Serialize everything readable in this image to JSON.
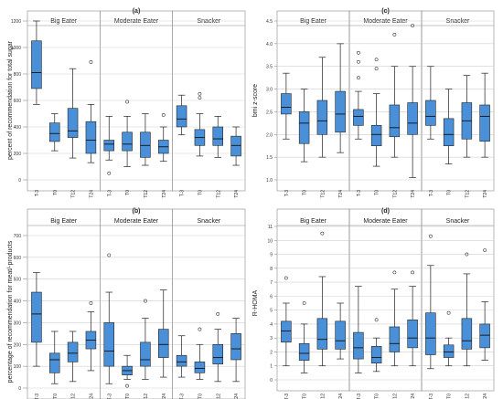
{
  "chart_data": [
    {
      "letter": "(a)",
      "type": "boxplot",
      "ylabel": "percent of recommendation for total sugar",
      "ylim": [
        0,
        1200
      ],
      "yticks": [
        0,
        200,
        400,
        600,
        800,
        1000,
        1200
      ],
      "grid": true,
      "categories": [
        "T-3",
        "T0",
        "T12",
        "T24"
      ],
      "box_color": "#4a90d9",
      "groups": [
        {
          "name": "Big Eater",
          "boxes": [
            {
              "min": 570,
              "q1": 690,
              "median": 810,
              "q3": 1050,
              "max": 1200,
              "outliers": []
            },
            {
              "min": 220,
              "q1": 290,
              "median": 350,
              "q3": 430,
              "max": 500,
              "outliers": []
            },
            {
              "min": 165,
              "q1": 320,
              "median": 370,
              "q3": 540,
              "max": 840,
              "outliers": []
            },
            {
              "min": 130,
              "q1": 200,
              "median": 300,
              "q3": 440,
              "max": 570,
              "outliers": [
                890
              ]
            }
          ]
        },
        {
          "name": "Moderate Eater",
          "boxes": [
            {
              "min": 150,
              "q1": 220,
              "median": 270,
              "q3": 300,
              "max": 480,
              "outliers": [
                50
              ]
            },
            {
              "min": 100,
              "q1": 220,
              "median": 270,
              "q3": 360,
              "max": 480,
              "outliers": [
                590
              ]
            },
            {
              "min": 110,
              "q1": 170,
              "median": 260,
              "q3": 360,
              "max": 500,
              "outliers": []
            },
            {
              "min": 140,
              "q1": 200,
              "median": 250,
              "q3": 300,
              "max": 400,
              "outliers": [
                490
              ]
            }
          ]
        },
        {
          "name": "Snacker",
          "boxes": [
            {
              "min": 340,
              "q1": 400,
              "median": 460,
              "q3": 560,
              "max": 640,
              "outliers": []
            },
            {
              "min": 180,
              "q1": 260,
              "median": 320,
              "q3": 380,
              "max": 500,
              "outliers": [
                620,
                650
              ]
            },
            {
              "min": 170,
              "q1": 260,
              "median": 310,
              "q3": 400,
              "max": 480,
              "outliers": []
            },
            {
              "min": 110,
              "q1": 180,
              "median": 260,
              "q3": 330,
              "max": 400,
              "outliers": []
            }
          ]
        }
      ]
    },
    {
      "letter": "(c)",
      "type": "boxplot",
      "ylabel": "bmi z-score",
      "ylim": [
        1.0,
        4.5
      ],
      "yticks": [
        1.0,
        1.5,
        2.0,
        2.5,
        3.0,
        3.5,
        4.0,
        4.5
      ],
      "grid": true,
      "categories": [
        "T-3",
        "T0",
        "T12",
        "T24"
      ],
      "box_color": "#4a90d9",
      "groups": [
        {
          "name": "Big Eater",
          "boxes": [
            {
              "min": 1.9,
              "q1": 2.45,
              "median": 2.6,
              "q3": 2.9,
              "max": 3.35,
              "outliers": []
            },
            {
              "min": 1.4,
              "q1": 1.8,
              "median": 2.25,
              "q3": 2.5,
              "max": 3.0,
              "outliers": []
            },
            {
              "min": 1.5,
              "q1": 2.0,
              "median": 2.3,
              "q3": 2.75,
              "max": 3.7,
              "outliers": []
            },
            {
              "min": 1.6,
              "q1": 2.05,
              "median": 2.45,
              "q3": 2.95,
              "max": 4.0,
              "outliers": []
            }
          ]
        },
        {
          "name": "Moderate Eater",
          "boxes": [
            {
              "min": 1.9,
              "q1": 2.2,
              "median": 2.4,
              "q3": 2.55,
              "max": 2.95,
              "outliers": [
                3.25,
                3.6,
                3.8
              ]
            },
            {
              "min": 1.3,
              "q1": 1.75,
              "median": 2.0,
              "q3": 2.2,
              "max": 2.9,
              "outliers": [
                3.45,
                3.65
              ]
            },
            {
              "min": 1.5,
              "q1": 1.95,
              "median": 2.15,
              "q3": 2.65,
              "max": 3.5,
              "outliers": [
                4.2
              ]
            },
            {
              "min": 1.05,
              "q1": 2.0,
              "median": 2.25,
              "q3": 2.7,
              "max": 3.5,
              "outliers": [
                4.4
              ]
            }
          ]
        },
        {
          "name": "Snacker",
          "boxes": [
            {
              "min": 1.9,
              "q1": 2.2,
              "median": 2.4,
              "q3": 2.75,
              "max": 3.5,
              "outliers": []
            },
            {
              "min": 1.35,
              "q1": 1.75,
              "median": 2.0,
              "q3": 2.35,
              "max": 3.0,
              "outliers": []
            },
            {
              "min": 1.5,
              "q1": 1.9,
              "median": 2.3,
              "q3": 2.7,
              "max": 3.3,
              "outliers": []
            },
            {
              "min": 1.5,
              "q1": 1.85,
              "median": 2.4,
              "q3": 2.65,
              "max": 3.35,
              "outliers": []
            }
          ]
        }
      ]
    },
    {
      "letter": "(b)",
      "type": "boxplot",
      "ylabel": "percentage of recommendation for meat/-products",
      "ylim": [
        0,
        700
      ],
      "yticks": [
        0,
        100,
        200,
        300,
        400,
        500,
        600,
        700
      ],
      "grid": true,
      "categories": [
        "T-3",
        "T0",
        "T12",
        "T24"
      ],
      "box_color": "#4a90d9",
      "groups": [
        {
          "name": "Big Eater",
          "boxes": [
            {
              "min": 100,
              "q1": 210,
              "median": 340,
              "q3": 440,
              "max": 530,
              "outliers": []
            },
            {
              "min": 20,
              "q1": 70,
              "median": 130,
              "q3": 160,
              "max": 260,
              "outliers": []
            },
            {
              "min": 30,
              "q1": 120,
              "median": 160,
              "q3": 210,
              "max": 260,
              "outliers": []
            },
            {
              "min": 80,
              "q1": 180,
              "median": 220,
              "q3": 260,
              "max": 350,
              "outliers": [
                390
              ]
            }
          ]
        },
        {
          "name": "Moderate Eater",
          "boxes": [
            {
              "min": 20,
              "q1": 100,
              "median": 170,
              "q3": 300,
              "max": 440,
              "outliers": [
                610
              ]
            },
            {
              "min": 40,
              "q1": 60,
              "median": 80,
              "q3": 100,
              "max": 150,
              "outliers": [
                10
              ]
            },
            {
              "min": 40,
              "q1": 100,
              "median": 130,
              "q3": 210,
              "max": 320,
              "outliers": [
                400
              ]
            },
            {
              "min": 50,
              "q1": 140,
              "median": 200,
              "q3": 270,
              "max": 450,
              "outliers": []
            }
          ]
        },
        {
          "name": "Snacker",
          "boxes": [
            {
              "min": 50,
              "q1": 100,
              "median": 120,
              "q3": 150,
              "max": 240,
              "outliers": []
            },
            {
              "min": 40,
              "q1": 70,
              "median": 90,
              "q3": 120,
              "max": 200,
              "outliers": [
                270
              ]
            },
            {
              "min": 30,
              "q1": 110,
              "median": 140,
              "q3": 200,
              "max": 270,
              "outliers": [
                340
              ]
            },
            {
              "min": 30,
              "q1": 130,
              "median": 180,
              "q3": 250,
              "max": 320,
              "outliers": []
            }
          ]
        }
      ]
    },
    {
      "letter": "(d)",
      "type": "boxplot",
      "ylabel": "R-HOMA",
      "ylim": [
        0,
        11
      ],
      "yticks": [
        0,
        1,
        2,
        3,
        4,
        5,
        6,
        7,
        8,
        9,
        10,
        11
      ],
      "grid": true,
      "categories": [
        "T-3",
        "T0",
        "T12",
        "T24"
      ],
      "box_color": "#4a90d9",
      "groups": [
        {
          "name": "Big Eater",
          "boxes": [
            {
              "min": 1.0,
              "q1": 2.7,
              "median": 3.5,
              "q3": 4.2,
              "max": 5.5,
              "outliers": [
                7.3
              ]
            },
            {
              "min": 0.5,
              "q1": 1.4,
              "median": 1.9,
              "q3": 2.6,
              "max": 4.0,
              "outliers": [
                5.5
              ]
            },
            {
              "min": 1.0,
              "q1": 2.2,
              "median": 2.9,
              "q3": 4.4,
              "max": 7.4,
              "outliers": [
                10.5
              ]
            },
            {
              "min": 1.5,
              "q1": 2.2,
              "median": 2.8,
              "q3": 4.2,
              "max": 5.5,
              "outliers": []
            }
          ]
        },
        {
          "name": "Moderate Eater",
          "boxes": [
            {
              "min": 0.5,
              "q1": 1.5,
              "median": 2.3,
              "q3": 3.4,
              "max": 6.7,
              "outliers": []
            },
            {
              "min": 0.6,
              "q1": 1.2,
              "median": 1.6,
              "q3": 2.4,
              "max": 3.0,
              "outliers": [
                4.3
              ]
            },
            {
              "min": 1.0,
              "q1": 2.0,
              "median": 2.6,
              "q3": 3.8,
              "max": 6.5,
              "outliers": [
                7.7
              ]
            },
            {
              "min": 1.0,
              "q1": 2.3,
              "median": 3.0,
              "q3": 4.3,
              "max": 6.7,
              "outliers": [
                7.7
              ]
            }
          ]
        },
        {
          "name": "Snacker",
          "boxes": [
            {
              "min": 0.8,
              "q1": 1.8,
              "median": 3.0,
              "q3": 4.8,
              "max": 8.2,
              "outliers": [
                10.3
              ]
            },
            {
              "min": 1.0,
              "q1": 1.6,
              "median": 2.0,
              "q3": 2.5,
              "max": 3.0,
              "outliers": [
                4.8
              ]
            },
            {
              "min": 1.0,
              "q1": 2.2,
              "median": 2.8,
              "q3": 4.4,
              "max": 7.6,
              "outliers": [
                9.0
              ]
            },
            {
              "min": 1.4,
              "q1": 2.3,
              "median": 3.2,
              "q3": 4.0,
              "max": 5.6,
              "outliers": [
                9.3
              ]
            }
          ]
        }
      ]
    }
  ]
}
